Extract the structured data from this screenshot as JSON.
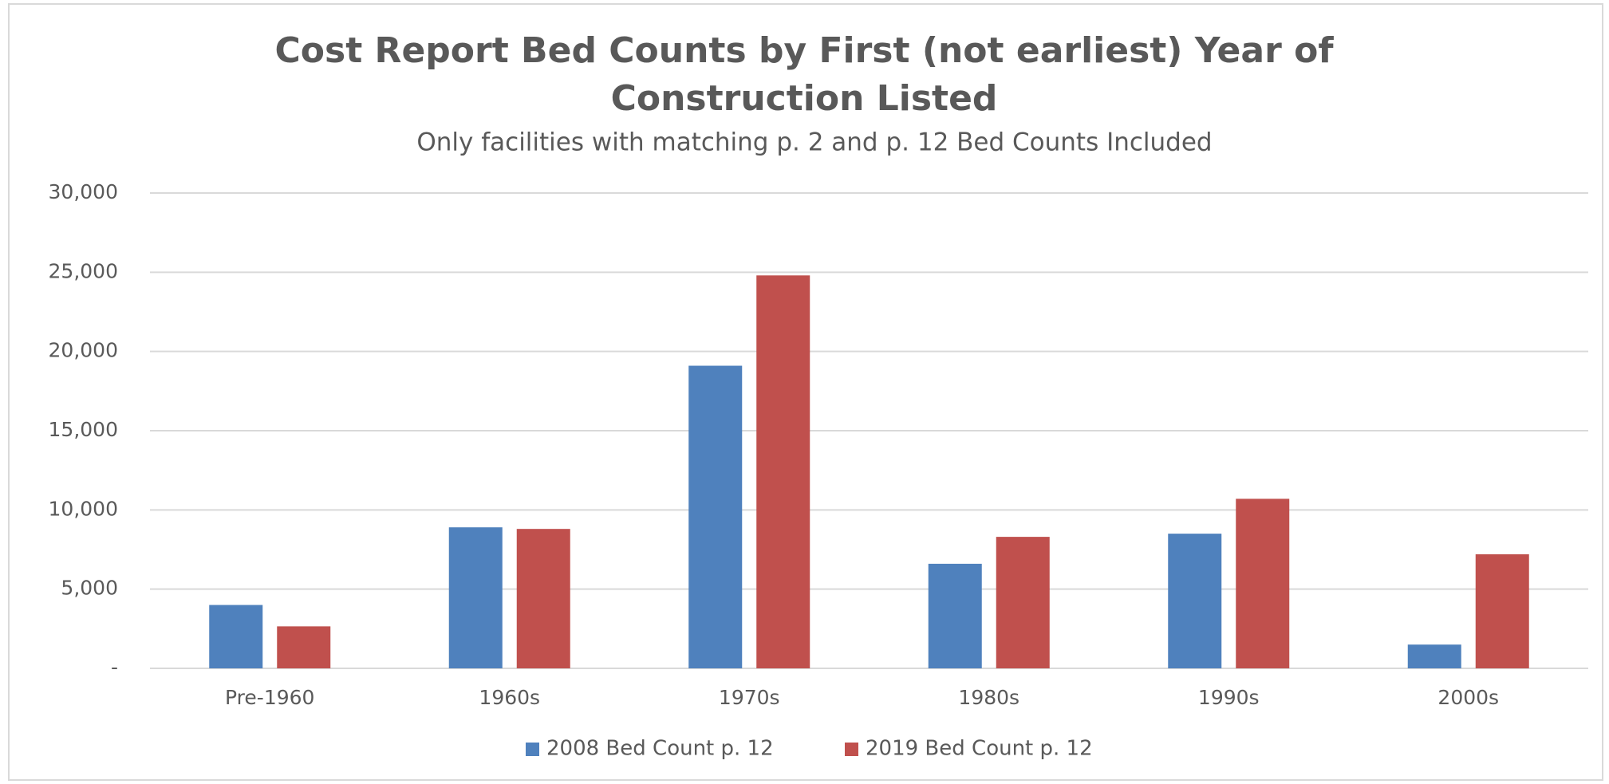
{
  "chart_data": {
    "type": "bar",
    "title": "Cost Report Bed Counts by First (not earliest) Year of Construction Listed",
    "subtitle": "Only facilities with matching p. 2 and p. 12 Bed Counts Included",
    "categories": [
      "Pre-1960",
      "1960s",
      "1970s",
      "1980s",
      "1990s",
      "2000s"
    ],
    "series": [
      {
        "name": "2008 Bed Count p. 12",
        "color": "#4f81bd",
        "values": [
          4000,
          8900,
          19100,
          6600,
          8500,
          1500
        ]
      },
      {
        "name": "2019 Bed Count p. 12",
        "color": "#c0504d",
        "values": [
          2650,
          8800,
          24800,
          8300,
          10700,
          7200
        ]
      }
    ],
    "ylim": [
      0,
      30000
    ],
    "yticks": [
      {
        "value": 0,
        "label": "-"
      },
      {
        "value": 5000,
        "label": "5,000"
      },
      {
        "value": 10000,
        "label": "10,000"
      },
      {
        "value": 15000,
        "label": "15,000"
      },
      {
        "value": 20000,
        "label": "20,000"
      },
      {
        "value": 25000,
        "label": "25,000"
      },
      {
        "value": 30000,
        "label": "30,000"
      }
    ],
    "grid": true,
    "legend": "bottom"
  }
}
